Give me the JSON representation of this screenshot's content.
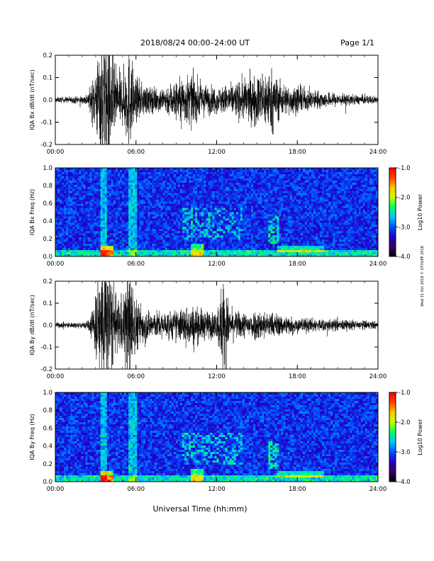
{
  "header": {
    "title": "2018/08/24  00:00–24:00 UT",
    "page": "Page 1/1"
  },
  "footer": {
    "xlabel": "Universal Time (hh:mm)",
    "credit": "Wed 31 Oct 2018 © UT/IGPP 2018"
  },
  "colorbar": {
    "label": "Log10 Power",
    "ticks": [
      "-1.0",
      "-2.0",
      "-3.0",
      "-4.0"
    ],
    "range": [
      -4,
      -1
    ],
    "colors": [
      "#000000",
      "#3a0060",
      "#2200c8",
      "#0050ff",
      "#00c8ff",
      "#00ff64",
      "#c8ff00",
      "#ffc800",
      "#ff4000",
      "#ff0000"
    ]
  },
  "chart_data": [
    {
      "type": "line",
      "ylabel": "IQA Bx dB/dt (nT/sec)",
      "xlim": [
        0,
        24
      ],
      "ylim": [
        -0.2,
        0.2
      ],
      "xticks": [
        "00:00",
        "06:00",
        "12:00",
        "18:00",
        "24:00"
      ],
      "yticks": [
        "0.2",
        "0.1",
        "0.0",
        "-0.1",
        "-0.2"
      ],
      "envelope": {
        "hour": [
          0,
          2,
          2.5,
          3.5,
          4,
          4.5,
          5,
          5.5,
          6,
          7,
          8,
          9,
          10,
          11,
          12,
          13,
          14,
          15,
          16,
          17,
          18,
          19,
          20,
          22,
          24
        ],
        "amp": [
          0.01,
          0.015,
          0.03,
          0.25,
          0.25,
          0.12,
          0.1,
          0.2,
          0.08,
          0.05,
          0.05,
          0.08,
          0.1,
          0.06,
          0.05,
          0.06,
          0.08,
          0.1,
          0.12,
          0.06,
          0.05,
          0.04,
          0.03,
          0.02,
          0.015
        ]
      }
    },
    {
      "type": "heatmap",
      "ylabel": "IQA Bx Freq (Hz)",
      "xlim": [
        0,
        24
      ],
      "ylim": [
        0,
        1
      ],
      "xticks": [
        "00:00",
        "06:00",
        "12:00",
        "18:00",
        "24:00"
      ],
      "yticks": [
        "1.0",
        "0.8",
        "0.6",
        "0.4",
        "0.2",
        "0.0"
      ]
    },
    {
      "type": "line",
      "ylabel": "IQA By dB/dt (nT/sec)",
      "xlim": [
        0,
        24
      ],
      "ylim": [
        -0.2,
        0.2
      ],
      "xticks": [
        "00:00",
        "06:00",
        "12:00",
        "18:00",
        "24:00"
      ],
      "yticks": [
        "0.2",
        "0.1",
        "0.0",
        "-0.1",
        "-0.2"
      ],
      "envelope": {
        "hour": [
          0,
          2,
          2.5,
          3.5,
          4,
          4.5,
          5,
          5.5,
          6,
          7,
          8,
          9,
          10,
          11,
          12,
          12.5,
          13,
          14,
          15,
          16,
          17,
          18,
          20,
          22,
          24
        ],
        "amp": [
          0.01,
          0.012,
          0.02,
          0.25,
          0.25,
          0.1,
          0.12,
          0.25,
          0.1,
          0.06,
          0.05,
          0.06,
          0.08,
          0.06,
          0.05,
          0.2,
          0.06,
          0.05,
          0.06,
          0.05,
          0.04,
          0.03,
          0.025,
          0.02,
          0.015
        ]
      }
    },
    {
      "type": "heatmap",
      "ylabel": "IQA By Freq (Hz)",
      "xlim": [
        0,
        24
      ],
      "ylim": [
        0,
        1
      ],
      "xticks": [
        "00:00",
        "06:00",
        "12:00",
        "18:00",
        "24:00"
      ],
      "yticks": [
        "1.0",
        "0.8",
        "0.6",
        "0.4",
        "0.2",
        "0.0"
      ]
    }
  ]
}
